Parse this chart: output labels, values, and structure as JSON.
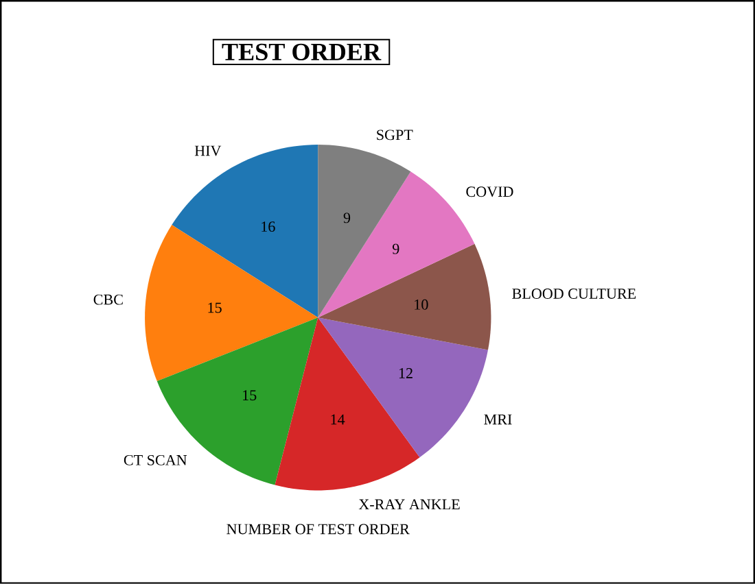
{
  "chart_data": {
    "type": "pie",
    "title": "TEST ORDER",
    "xlabel": "NUMBER OF TEST ORDER",
    "categories": [
      "HIV",
      "CBC",
      "CT SCAN",
      "X-RAY ANKLE",
      "MRI",
      "BLOOD CULTURE",
      "COVID",
      "SGPT"
    ],
    "values": [
      16,
      15,
      15,
      14,
      12,
      10,
      9,
      9
    ],
    "colors": [
      "#1f77b4",
      "#ff7f0e",
      "#2ca02c",
      "#d62728",
      "#9467bd",
      "#8c564b",
      "#e377c2",
      "#7f7f7f"
    ],
    "data_labels": true
  }
}
